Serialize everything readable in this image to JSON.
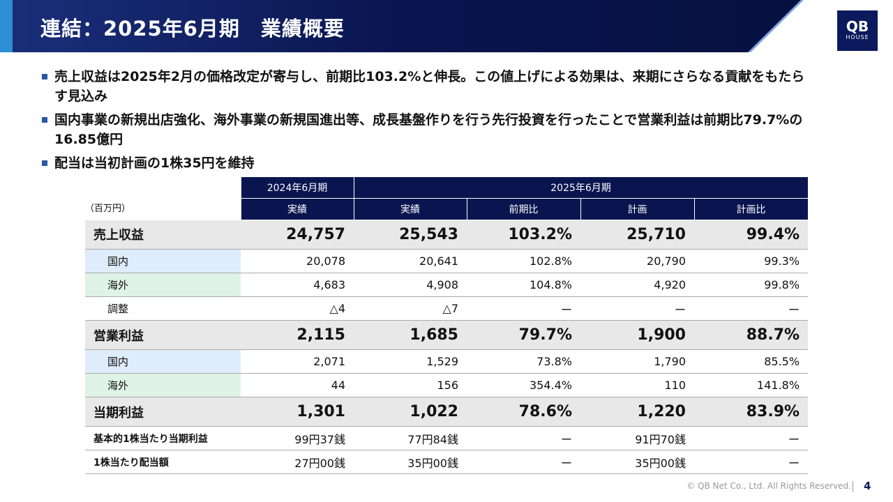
{
  "header": {
    "title": "連結：2025年6月期　業績概要",
    "logo_top": "QB",
    "logo_bottom": "HOUSE"
  },
  "bullets": [
    "売上収益は2025年2月の価格改定が寄与し、前期比103.2%と伸長。この値上げによる効果は、来期にさらなる貢献をもたらす見込み",
    "国内事業の新規出店強化、海外事業の新規国進出等、成長基盤作りを行う先行投資を行ったことで営業利益は前期比79.7%の16.85億円",
    "配当は当初計画の1株35円を維持"
  ],
  "table": {
    "unit": "（百万円）",
    "header_row1": [
      "2024年6月期",
      "2025年6月期"
    ],
    "header_row2": [
      "実績",
      "実績",
      "前期比",
      "計画",
      "計画比"
    ],
    "rows": [
      [
        "売上収益",
        "24,757",
        "25,543",
        "103.2%",
        "25,710",
        "99.4%"
      ],
      [
        "国内",
        "20,078",
        "20,641",
        "102.8%",
        "20,790",
        "99.3%"
      ],
      [
        "海外",
        "4,683",
        "4,908",
        "104.8%",
        "4,920",
        "99.8%"
      ],
      [
        "調整",
        "△4",
        "△7",
        "ー",
        "ー",
        "ー"
      ],
      [
        "営業利益",
        "2,115",
        "1,685",
        "79.7%",
        "1,900",
        "88.7%"
      ],
      [
        "国内",
        "2,071",
        "1,529",
        "73.8%",
        "1,790",
        "85.5%"
      ],
      [
        "海外",
        "44",
        "156",
        "354.4%",
        "110",
        "141.8%"
      ],
      [
        "当期利益",
        "1,301",
        "1,022",
        "78.6%",
        "1,220",
        "83.9%"
      ],
      [
        "基本的1株当たり当期利益",
        "99円37銭",
        "77円84銭",
        "ー",
        "91円70銭",
        "ー"
      ],
      [
        "1株当たり配当額",
        "27円00銭",
        "35円00銭",
        "ー",
        "35円00銭",
        "ー"
      ]
    ]
  },
  "footer": {
    "copyright": "© QB Net Co., Ltd. All Rights Reserved.",
    "page": "4"
  }
}
